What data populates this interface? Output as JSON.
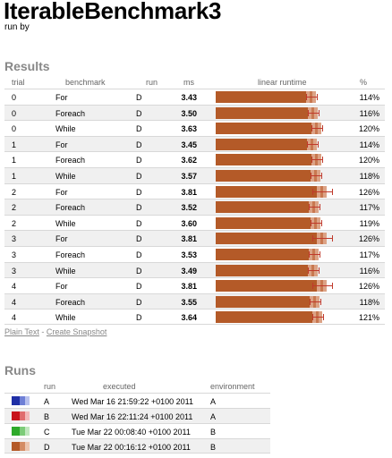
{
  "page": {
    "title": "IterableBenchmark3",
    "subtitle": "run by"
  },
  "results": {
    "heading": "Results",
    "columns": {
      "trial": "trial",
      "benchmark": "benchmark",
      "run": "run",
      "ms": "ms",
      "linear_runtime": "linear runtime",
      "pct": "%"
    },
    "rows": [
      {
        "trial": "0",
        "benchmark": "For",
        "run": "D",
        "ms": "3.43",
        "pct": "114%"
      },
      {
        "trial": "0",
        "benchmark": "Foreach",
        "run": "D",
        "ms": "3.50",
        "pct": "116%"
      },
      {
        "trial": "0",
        "benchmark": "While",
        "run": "D",
        "ms": "3.63",
        "pct": "120%"
      },
      {
        "trial": "1",
        "benchmark": "For",
        "run": "D",
        "ms": "3.45",
        "pct": "114%"
      },
      {
        "trial": "1",
        "benchmark": "Foreach",
        "run": "D",
        "ms": "3.62",
        "pct": "120%"
      },
      {
        "trial": "1",
        "benchmark": "While",
        "run": "D",
        "ms": "3.57",
        "pct": "118%"
      },
      {
        "trial": "2",
        "benchmark": "For",
        "run": "D",
        "ms": "3.81",
        "pct": "126%"
      },
      {
        "trial": "2",
        "benchmark": "Foreach",
        "run": "D",
        "ms": "3.52",
        "pct": "117%"
      },
      {
        "trial": "2",
        "benchmark": "While",
        "run": "D",
        "ms": "3.60",
        "pct": "119%"
      },
      {
        "trial": "3",
        "benchmark": "For",
        "run": "D",
        "ms": "3.81",
        "pct": "126%"
      },
      {
        "trial": "3",
        "benchmark": "Foreach",
        "run": "D",
        "ms": "3.53",
        "pct": "117%"
      },
      {
        "trial": "3",
        "benchmark": "While",
        "run": "D",
        "ms": "3.49",
        "pct": "116%"
      },
      {
        "trial": "4",
        "benchmark": "For",
        "run": "D",
        "ms": "3.81",
        "pct": "126%"
      },
      {
        "trial": "4",
        "benchmark": "Foreach",
        "run": "D",
        "ms": "3.55",
        "pct": "118%"
      },
      {
        "trial": "4",
        "benchmark": "While",
        "run": "D",
        "ms": "3.64",
        "pct": "121%"
      }
    ],
    "bar_colors": {
      "main": "#b45a28",
      "light": "#dca386",
      "mid": "#c87850",
      "error": "#c0392b"
    }
  },
  "links": {
    "plain_text": "Plain Text",
    "separator": "-",
    "snapshot": "Create Snapshot"
  },
  "runs": {
    "heading": "Runs",
    "columns": {
      "run": "run",
      "executed": "executed",
      "environment": "environment"
    },
    "rows": [
      {
        "run": "A",
        "executed": "Wed Mar 16 21:59:22 +0100 2011",
        "environment": "A",
        "colors": [
          "#1f2fa6",
          "#6e7fd6",
          "#b8c1ee"
        ]
      },
      {
        "run": "B",
        "executed": "Wed Mar 16 22:11:24 +0100 2011",
        "environment": "A",
        "colors": [
          "#c8141c",
          "#e06c6e",
          "#f2b9ba"
        ]
      },
      {
        "run": "C",
        "executed": "Tue Mar 22 00:08:40 +0100 2011",
        "environment": "B",
        "colors": [
          "#2eaa2a",
          "#7ccc78",
          "#c2e8c0"
        ]
      },
      {
        "run": "D",
        "executed": "Tue Mar 22 00:16:12 +0100 2011",
        "environment": "B",
        "colors": [
          "#b45a28",
          "#d48c64",
          "#ecc6b0"
        ]
      }
    ]
  }
}
